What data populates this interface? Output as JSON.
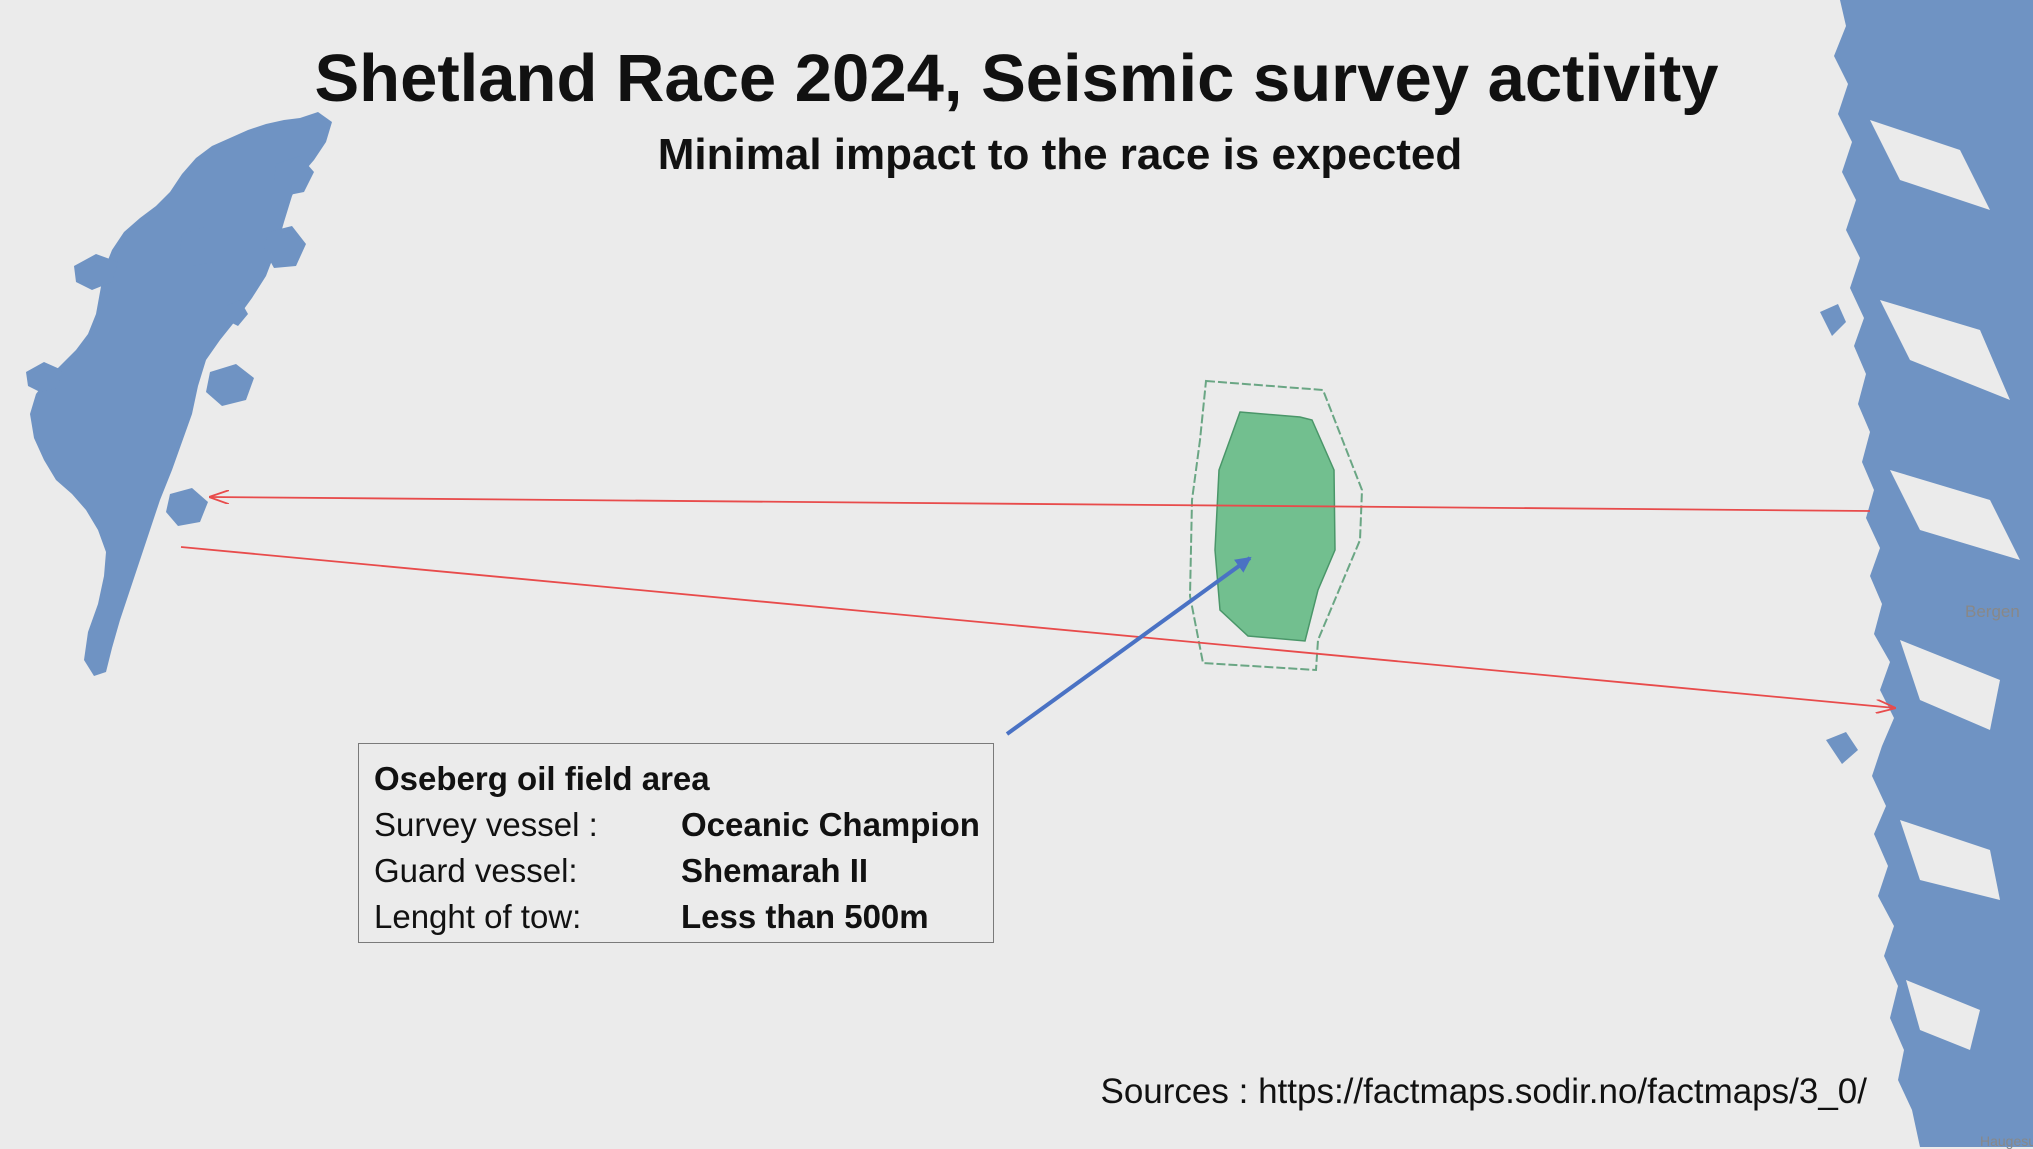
{
  "title": "Shetland Race 2024, Seismic survey activity",
  "subtitle": "Minimal impact to the race is expected",
  "info_box": {
    "heading": "Oseberg oil field area",
    "rows": [
      {
        "label": "Survey vessel :",
        "value": "Oceanic Champion"
      },
      {
        "label": "Guard vessel:",
        "value": "Shemarah II"
      },
      {
        "label": "Lenght of tow:",
        "value": "Less than 500m"
      }
    ]
  },
  "sources": "Sources : https://factmaps.sodir.no/factmaps/3_0/",
  "map_labels": {
    "bergen": "Bergen",
    "bottom_right": "Haugesund"
  },
  "colors": {
    "sea": "#ebebeb",
    "land": "#6f93c3",
    "field_fill": "#72bf8f",
    "survey_boundary": "#6aa684",
    "route": "#e84b4b",
    "pointer_arrow": "#4a72c4"
  }
}
